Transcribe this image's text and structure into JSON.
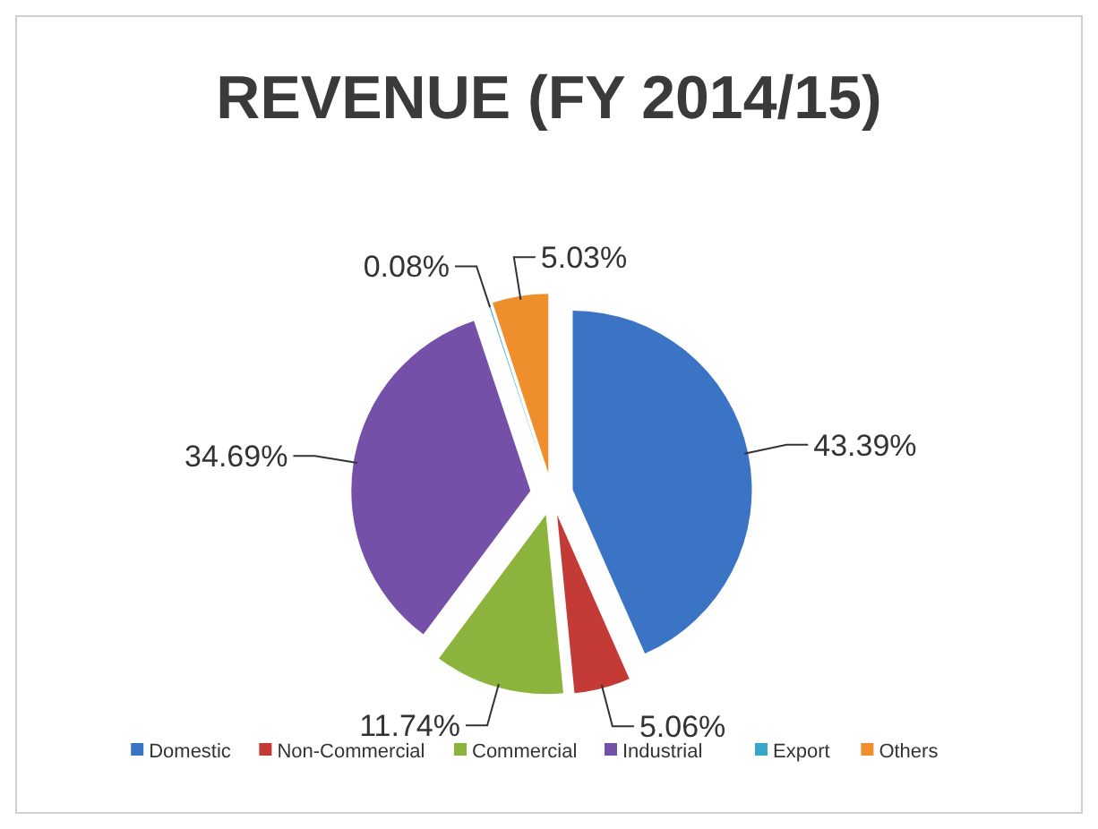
{
  "chart_data": {
    "type": "pie",
    "title": "REVENUE (FY  2014/15)",
    "categories": [
      "Domestic",
      "Non-Commercial",
      "Commercial",
      "Industrial",
      "Export",
      "Others"
    ],
    "values": [
      43.39,
      5.06,
      11.74,
      34.69,
      0.08,
      5.03
    ],
    "value_labels": [
      "43.39%",
      "5.06%",
      "11.74%",
      "34.69%",
      "0.08%",
      "5.03%"
    ],
    "colors": [
      "#3b74c4",
      "#c43a36",
      "#8cb43c",
      "#7550a8",
      "#38a6c6",
      "#ee8e2c"
    ],
    "legend": "bottom"
  }
}
